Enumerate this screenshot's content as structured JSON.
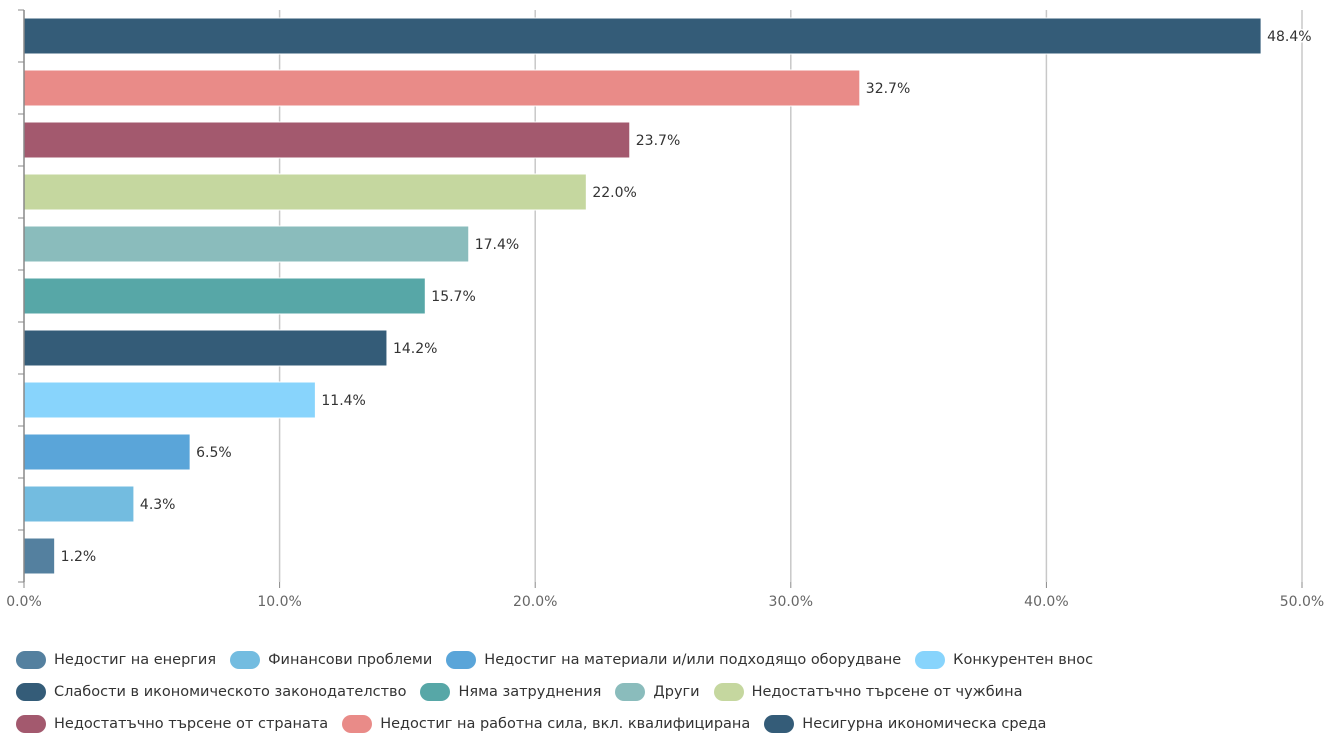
{
  "chart_data": {
    "type": "bar",
    "orientation": "horizontal",
    "categories": [
      "Несигурна икономическа среда",
      "Недостиг на работна сила, вкл. квалифицирана",
      "Недостатъчно търсене от страната",
      "Недостатъчно търсене от чужбина",
      "Други",
      "Няма затруднения",
      "Слабости в икономическото законодателство",
      "Конкурентен внос",
      "Недостиг на материали и/или подходящо оборудване",
      "Финансови проблеми",
      "Недостиг на енергия"
    ],
    "values": [
      48.4,
      32.7,
      23.7,
      22.0,
      17.4,
      15.7,
      14.2,
      11.4,
      6.5,
      4.3,
      1.2
    ],
    "value_labels": [
      "48.4%",
      "32.7%",
      "23.7%",
      "22.0%",
      "17.4%",
      "15.7%",
      "14.2%",
      "11.4%",
      "6.5%",
      "4.3%",
      "1.2%"
    ],
    "colors": [
      "#345c78",
      "#e98b88",
      "#a3596e",
      "#c5d79f",
      "#8abcbc",
      "#57a7a7",
      "#345c78",
      "#88d4fc",
      "#5aa5d9",
      "#73bce0",
      "#54809f"
    ],
    "xlim": [
      0,
      50
    ],
    "x_ticks": [
      0,
      10,
      20,
      30,
      40,
      50
    ],
    "x_tick_labels": [
      "0.0%",
      "10.0%",
      "20.0%",
      "30.0%",
      "40.0%",
      "50.0%"
    ],
    "grid": true,
    "legend_position": "bottom",
    "title": "",
    "xlabel": "",
    "ylabel": ""
  },
  "legend": {
    "rows": [
      [
        {
          "label": "Недостиг на енергия",
          "color": "#54809f"
        },
        {
          "label": "Финансови проблеми",
          "color": "#73bce0"
        },
        {
          "label": "Недостиг на материали и/или подходящо оборудване",
          "color": "#5aa5d9"
        },
        {
          "label": "Конкурентен внос",
          "color": "#88d4fc"
        }
      ],
      [
        {
          "label": "Слабости в икономическото законодателство",
          "color": "#345c78"
        },
        {
          "label": "Няма затруднения",
          "color": "#57a7a7"
        },
        {
          "label": "Други",
          "color": "#8abcbc"
        },
        {
          "label": "Недостатъчно търсене от чужбина",
          "color": "#c5d79f"
        }
      ],
      [
        {
          "label": "Недостатъчно търсене от страната",
          "color": "#a3596e"
        },
        {
          "label": "Недостиг на работна сила, вкл. квалифицирана",
          "color": "#e98b88"
        },
        {
          "label": "Несигурна икономическа среда",
          "color": "#345c78"
        }
      ]
    ]
  }
}
